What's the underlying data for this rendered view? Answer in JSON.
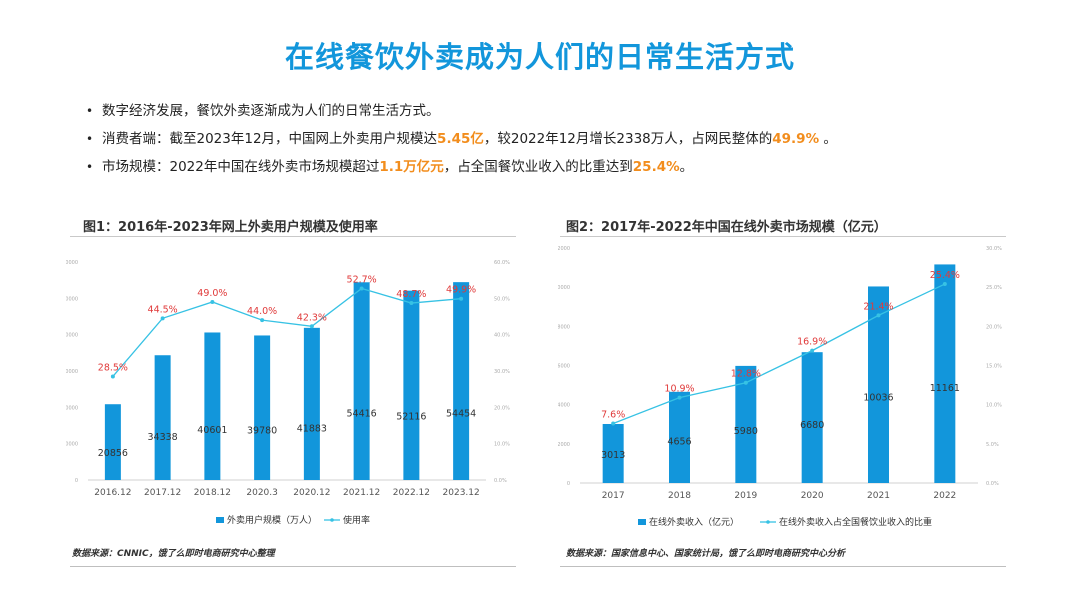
{
  "page": {
    "title": "在线餐饮外卖成为人们的日常生活方式",
    "bullets": [
      {
        "parts": [
          {
            "text": "数字经济发展，餐饮外卖逐渐成为人们的日常生活方式。",
            "hl": false
          }
        ]
      },
      {
        "parts": [
          {
            "text": "消费者端：截至2023年12月，中国网上外卖用户规模达",
            "hl": false
          },
          {
            "text": "5.45亿",
            "hl": true
          },
          {
            "text": "，较2022年12月增长2338万人，占网民整体的",
            "hl": false
          },
          {
            "text": "49.9%",
            "hl": true
          },
          {
            "text": " 。",
            "hl": false
          }
        ]
      },
      {
        "parts": [
          {
            "text": "市场规模：2022年中国在线外卖市场规模超过",
            "hl": false
          },
          {
            "text": "1.1万亿元",
            "hl": true
          },
          {
            "text": "，占全国餐饮业收入的比重达到",
            "hl": false
          },
          {
            "text": "25.4%",
            "hl": true
          },
          {
            "text": "。",
            "hl": false
          }
        ]
      }
    ],
    "bullet_symbol": "•"
  },
  "left_panel": {
    "title": "图1：2016年-2023年网上外卖用户规模及使用率",
    "source": "数据来源：CNNIC，饿了么即时电商研究中心整理"
  },
  "right_panel": {
    "title": "图2：2017年-2022年中国在线外卖市场规模（亿元）",
    "source": "数据来源：国家信息中心、国家统计局，饿了么即时电商研究中心分析"
  },
  "colors": {
    "bar": "#1296db",
    "line": "#37c2e4",
    "pct_label": "#e03a3a",
    "highlight": "#f28d1d",
    "title": "#1296db"
  },
  "chart_data": [
    {
      "type": "bar",
      "title": "图1：2016年-2023年网上外卖用户规模及使用率",
      "categories": [
        "2016.12",
        "2017.12",
        "2018.12",
        "2020.3",
        "2020.12",
        "2021.12",
        "2022.12",
        "2023.12"
      ],
      "series": [
        {
          "name": "外卖用户规模（万人）",
          "type": "bar",
          "axis": "left",
          "values": [
            20856,
            34338,
            40601,
            39780,
            41883,
            54416,
            52116,
            54454
          ],
          "labels": [
            "20856",
            "34338",
            "40601",
            "39780",
            "41883",
            "54416",
            "52116",
            "54454"
          ]
        },
        {
          "name": "使用率",
          "type": "line",
          "axis": "right",
          "values": [
            28.5,
            44.5,
            49.0,
            44.0,
            42.3,
            52.7,
            48.7,
            49.9
          ],
          "labels": [
            "28.5%",
            "44.5%",
            "49.0%",
            "44.0%",
            "42.3%",
            "52.7%",
            "48.7%",
            "49.9%"
          ]
        }
      ],
      "y_left": {
        "ylim": [
          0,
          60000
        ],
        "ticks": [
          "0",
          "10000",
          "20000",
          "30000",
          "40000",
          "50000",
          "60000"
        ]
      },
      "y_right": {
        "ylim": [
          0,
          60
        ],
        "ticks": [
          "0.0%",
          "10.0%",
          "20.0%",
          "30.0%",
          "40.0%",
          "50.0%",
          "60.0%"
        ]
      },
      "grid": false,
      "legend": "bottom"
    },
    {
      "type": "bar",
      "title": "图2：2017年-2022年中国在线外卖市场规模（亿元）",
      "categories": [
        "2017",
        "2018",
        "2019",
        "2020",
        "2021",
        "2022"
      ],
      "series": [
        {
          "name": "在线外卖收入（亿元）",
          "type": "bar",
          "axis": "left",
          "values": [
            3013,
            4656,
            5980,
            6680,
            10036,
            11161
          ],
          "labels": [
            "3013",
            "4656",
            "5980",
            "6680",
            "10036",
            "11161"
          ]
        },
        {
          "name": "在线外卖收入占全国餐饮业收入的比重",
          "type": "line",
          "axis": "right",
          "values": [
            7.6,
            10.9,
            12.8,
            16.9,
            21.4,
            25.4
          ],
          "labels": [
            "7.6%",
            "10.9%",
            "12.8%",
            "16.9%",
            "21.4%",
            "25.4%"
          ]
        }
      ],
      "y_left": {
        "ylim": [
          0,
          12000
        ],
        "ticks": [
          "0",
          "2000",
          "4000",
          "6000",
          "8000",
          "10000",
          "12000"
        ]
      },
      "y_right": {
        "ylim": [
          0,
          30
        ],
        "ticks": [
          "0.0%",
          "5.0%",
          "10.0%",
          "15.0%",
          "20.0%",
          "25.0%",
          "30.0%"
        ]
      },
      "grid": false,
      "legend": "bottom"
    }
  ]
}
